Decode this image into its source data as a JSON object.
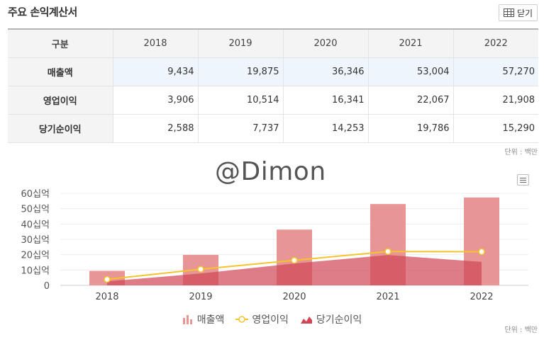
{
  "header": {
    "title": "주요 손익계산서",
    "close_label": "닫기"
  },
  "table": {
    "corner": "구분",
    "years": [
      "2018",
      "2019",
      "2020",
      "2021",
      "2022"
    ],
    "rows": [
      {
        "label": "매출액",
        "values": [
          "9,434",
          "19,875",
          "36,346",
          "53,004",
          "57,270"
        ]
      },
      {
        "label": "영업이익",
        "values": [
          "3,906",
          "10,514",
          "16,341",
          "22,067",
          "21,908"
        ]
      },
      {
        "label": "당기순이익",
        "values": [
          "2,588",
          "7,737",
          "14,253",
          "19,786",
          "15,290"
        ]
      }
    ]
  },
  "unit_label": "단위 : 백만",
  "watermark": "@Dimon",
  "chart_data": {
    "type": "bar",
    "categories": [
      "2018",
      "2019",
      "2020",
      "2021",
      "2022"
    ],
    "y_ticks": [
      "0",
      "10십억",
      "20십억",
      "30십억",
      "40십억",
      "50십억",
      "60십억"
    ],
    "ylim": [
      0,
      60000
    ],
    "series": [
      {
        "name": "매출액",
        "type": "bar",
        "values": [
          9434,
          19875,
          36346,
          53004,
          57270
        ],
        "color": "#e89595"
      },
      {
        "name": "영업이익",
        "type": "line",
        "values": [
          3906,
          10514,
          16341,
          22067,
          21908
        ],
        "color": "#f5c42c"
      },
      {
        "name": "당기순이익",
        "type": "area",
        "values": [
          2588,
          7737,
          14253,
          19786,
          15290
        ],
        "color": "#d04656"
      }
    ],
    "legend_position": "bottom-center",
    "grid": true
  }
}
